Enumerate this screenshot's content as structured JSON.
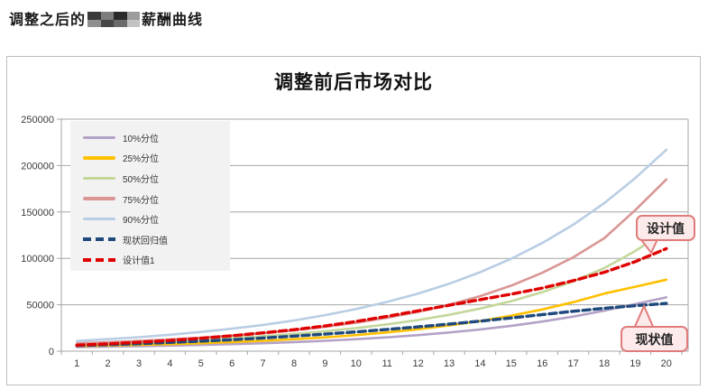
{
  "page": {
    "heading_prefix": "调整之后的",
    "heading_suffix": "薪酬曲线",
    "heading_redaction": "pixelated-block"
  },
  "chart": {
    "title": "调整前后市场对比"
  },
  "annotations": {
    "design_label": "设计值",
    "current_label": "现状值",
    "callout_fill": "#fcebea",
    "callout_border": "#e07b7b"
  },
  "chart_data": {
    "type": "line",
    "title": "调整前后市场对比",
    "xlabel": "",
    "ylabel": "",
    "x": [
      1,
      2,
      3,
      4,
      5,
      6,
      7,
      8,
      9,
      10,
      11,
      12,
      13,
      14,
      15,
      16,
      17,
      18,
      19,
      20
    ],
    "ylim": [
      0,
      250000
    ],
    "yticks": [
      0,
      50000,
      100000,
      150000,
      200000,
      250000
    ],
    "grid": "horizontal",
    "legend_position": "top-left",
    "series": [
      {
        "name": "10%分位",
        "color": "#b3a2c7",
        "dash": false,
        "values": [
          4500,
          4900,
          5400,
          6000,
          6700,
          7600,
          8600,
          9800,
          11200,
          12900,
          14900,
          17300,
          20100,
          23400,
          27300,
          31900,
          37300,
          43700,
          50800,
          58000
        ]
      },
      {
        "name": "25%分位",
        "color": "#ffc000",
        "dash": false,
        "values": [
          5500,
          6100,
          6800,
          7600,
          8600,
          9800,
          11200,
          12900,
          14900,
          17300,
          20200,
          23600,
          27700,
          32500,
          38200,
          44900,
          52800,
          62100,
          69500,
          77000
        ]
      },
      {
        "name": "50%分位",
        "color": "#c4d79b",
        "dash": false,
        "values": [
          7000,
          8000,
          9200,
          10600,
          12200,
          14000,
          16100,
          18600,
          21500,
          24900,
          28900,
          33600,
          39200,
          45900,
          53900,
          63600,
          75300,
          89500,
          108000,
          130000
        ]
      },
      {
        "name": "75%分位",
        "color": "#d99694",
        "dash": false,
        "values": [
          8500,
          9700,
          11100,
          12700,
          14600,
          16800,
          19400,
          22500,
          26200,
          30700,
          36000,
          42300,
          50000,
          59300,
          70600,
          84400,
          101200,
          121700,
          152000,
          185000
        ]
      },
      {
        "name": "90%分位",
        "color": "#b9cde4",
        "dash": false,
        "values": [
          11000,
          12900,
          15100,
          17700,
          20700,
          24200,
          28300,
          33100,
          38800,
          45400,
          53100,
          62100,
          72700,
          85100,
          99600,
          116500,
          136300,
          159500,
          186600,
          217000
        ]
      },
      {
        "name": "现状回归值",
        "color": "#1f497d",
        "dash": true,
        "values": [
          6000,
          7000,
          8100,
          9400,
          10800,
          12400,
          14200,
          16200,
          18400,
          20800,
          23400,
          26200,
          29200,
          32400,
          35800,
          39400,
          43000,
          46200,
          49000,
          51500
        ]
      },
      {
        "name": "设计值1",
        "color": "#e00000",
        "dash": true,
        "values": [
          6500,
          7900,
          9600,
          11600,
          13900,
          16600,
          19700,
          23200,
          27200,
          32000,
          37500,
          43500,
          49500,
          55500,
          61500,
          68000,
          76000,
          85000,
          96500,
          110500
        ]
      }
    ]
  }
}
